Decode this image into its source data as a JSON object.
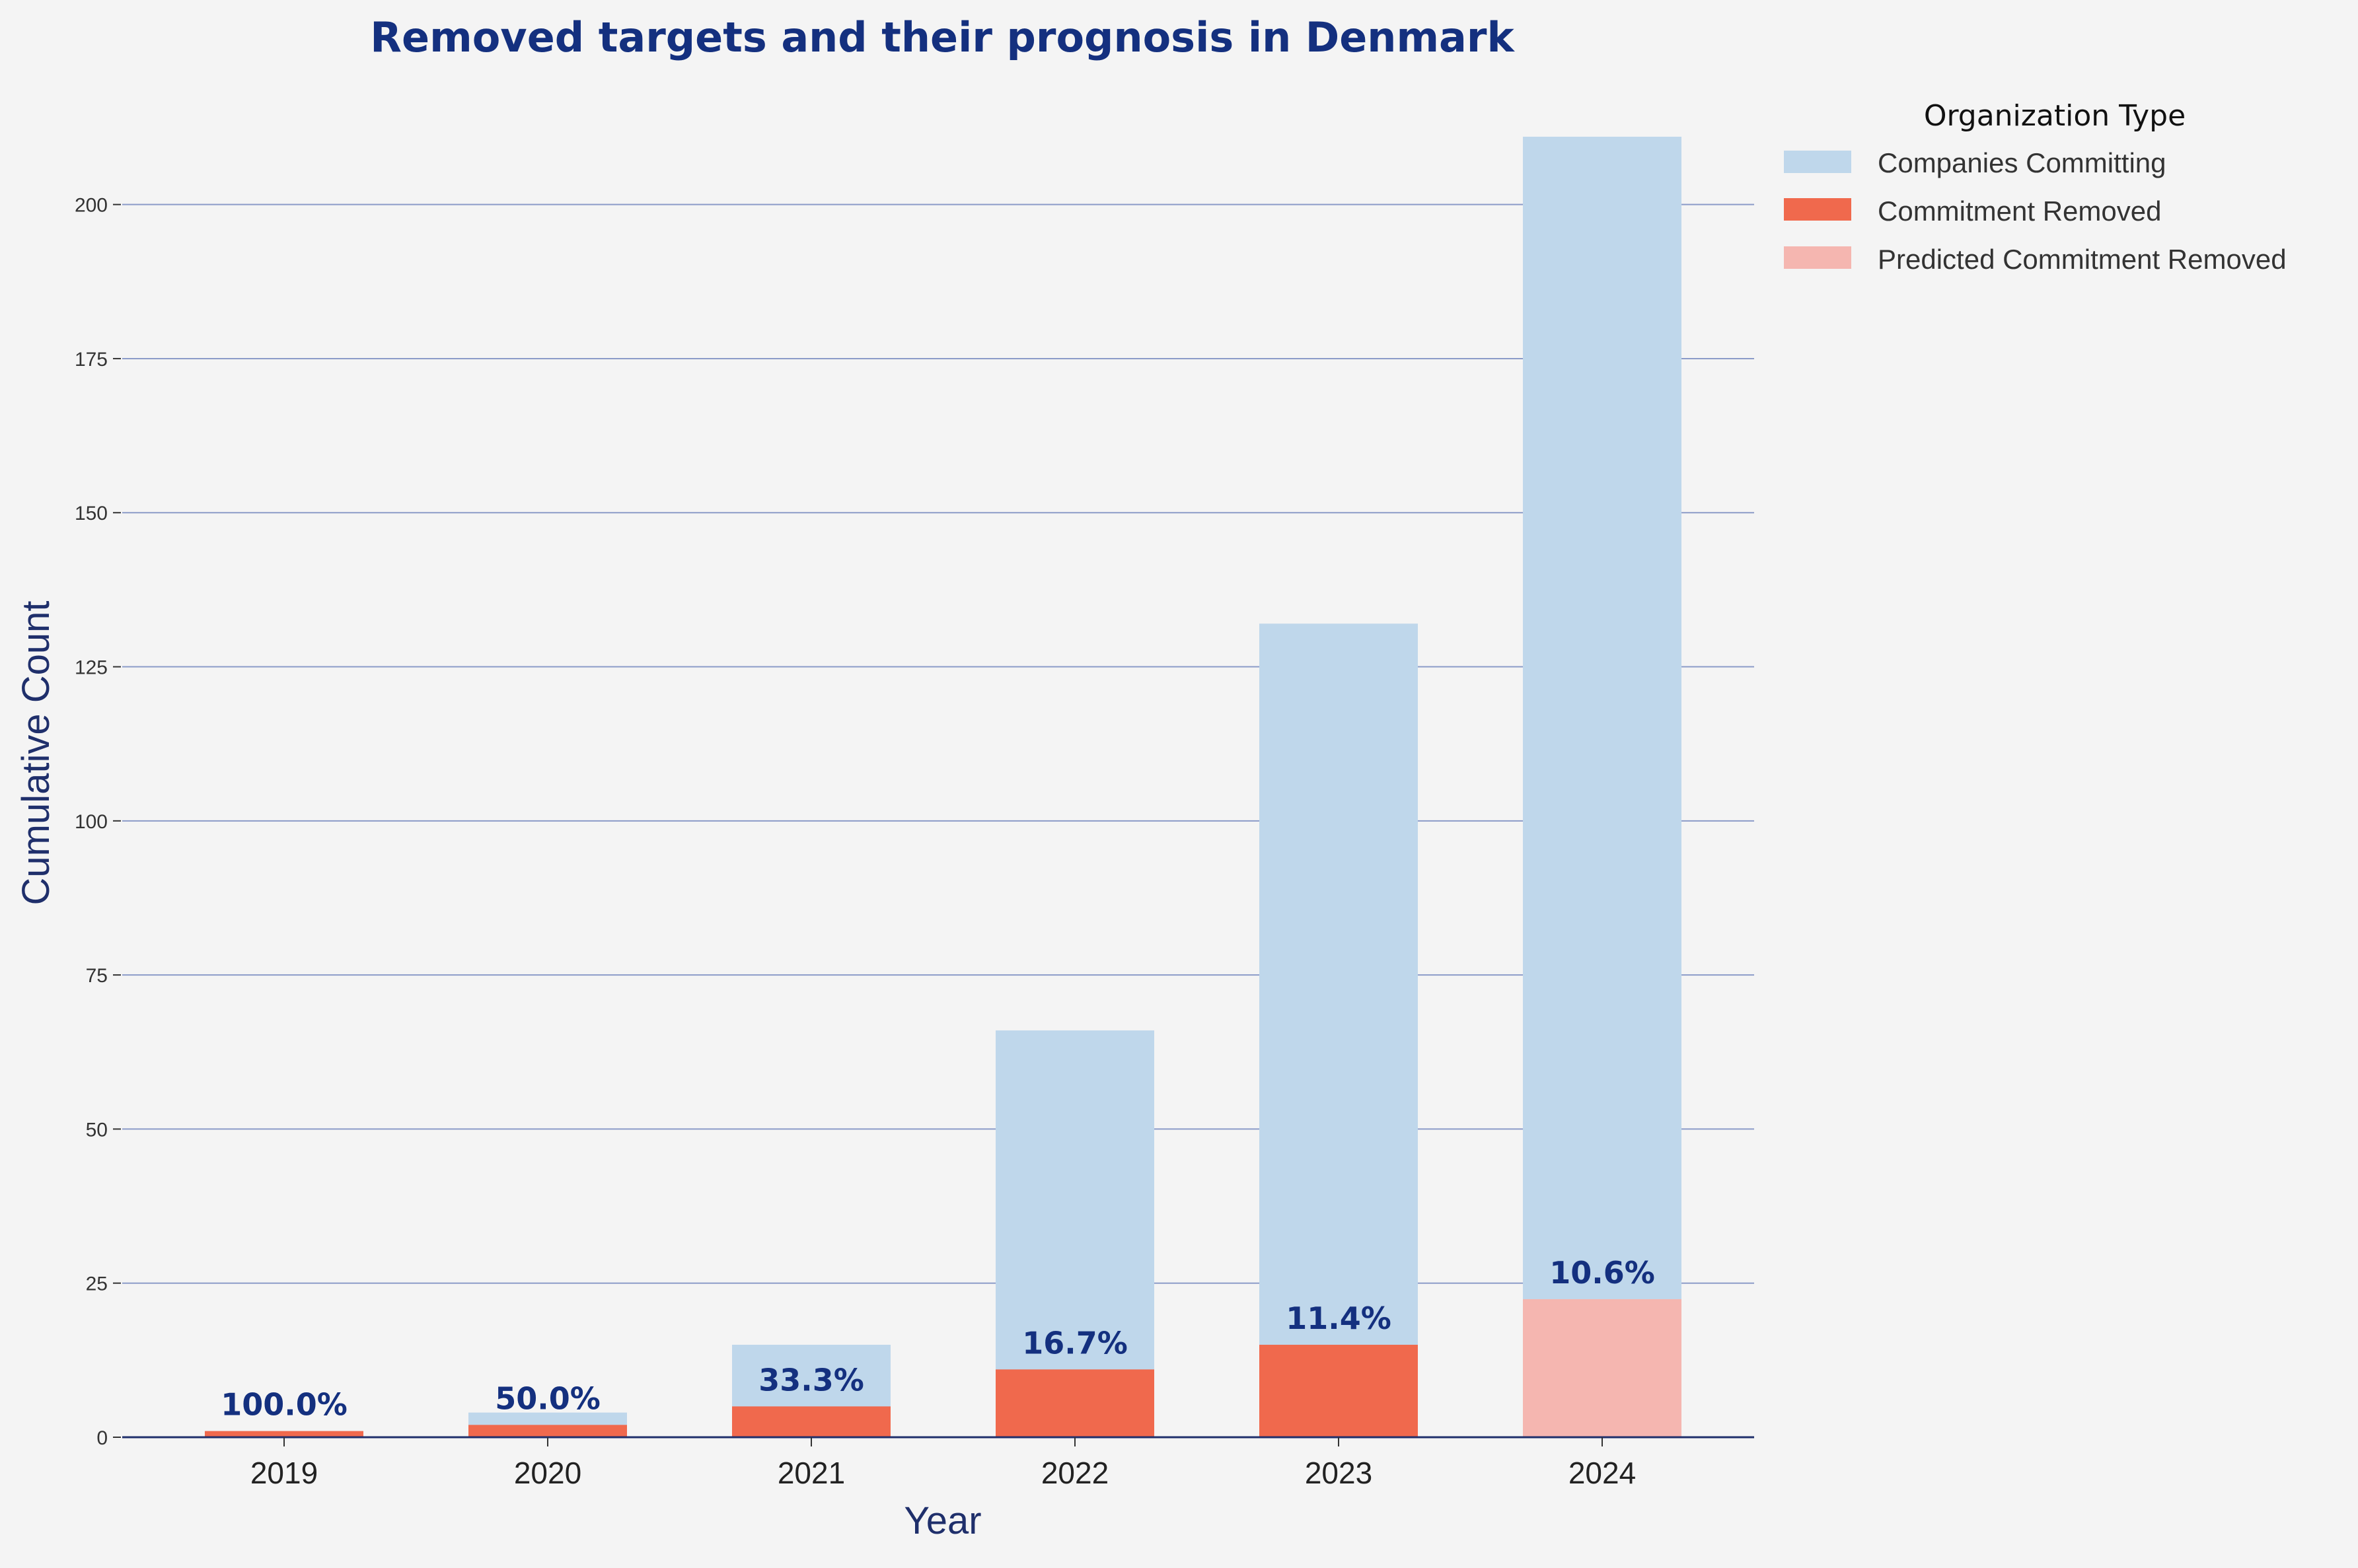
{
  "chart_data": {
    "type": "bar",
    "title": "Removed targets and their prognosis in Denmark",
    "xlabel": "Year",
    "ylabel": "Cumulative Count",
    "categories": [
      "2019",
      "2020",
      "2021",
      "2022",
      "2023",
      "2024"
    ],
    "ylim": [
      0,
      211
    ],
    "yticks": [
      0,
      25,
      50,
      75,
      100,
      125,
      150,
      175,
      200
    ],
    "grid": "horizontal",
    "legend": {
      "title": "Organization Type",
      "placement": "top-right-outside",
      "entries": [
        "Companies Committing",
        "Commitment Removed",
        "Predicted Commitment Removed"
      ]
    },
    "series": [
      {
        "name": "Companies Committing",
        "values": [
          1,
          4,
          15,
          66,
          132,
          211
        ]
      },
      {
        "name": "Commitment Removed",
        "values": [
          1,
          2,
          5,
          11,
          15,
          null
        ]
      },
      {
        "name": "Predicted Commitment Removed",
        "values": [
          null,
          null,
          null,
          null,
          null,
          22.4
        ]
      }
    ],
    "data_labels": [
      "100.0%",
      "50.0%",
      "33.3%",
      "16.7%",
      "11.4%",
      "10.6%"
    ],
    "colors": {
      "companies": "#bfd7eb",
      "removed": "#f0694d",
      "predicted": "#f5b6b0",
      "title": "#14307f",
      "gridline": "#8b9bc8",
      "axis": "#1f2f6b"
    }
  }
}
